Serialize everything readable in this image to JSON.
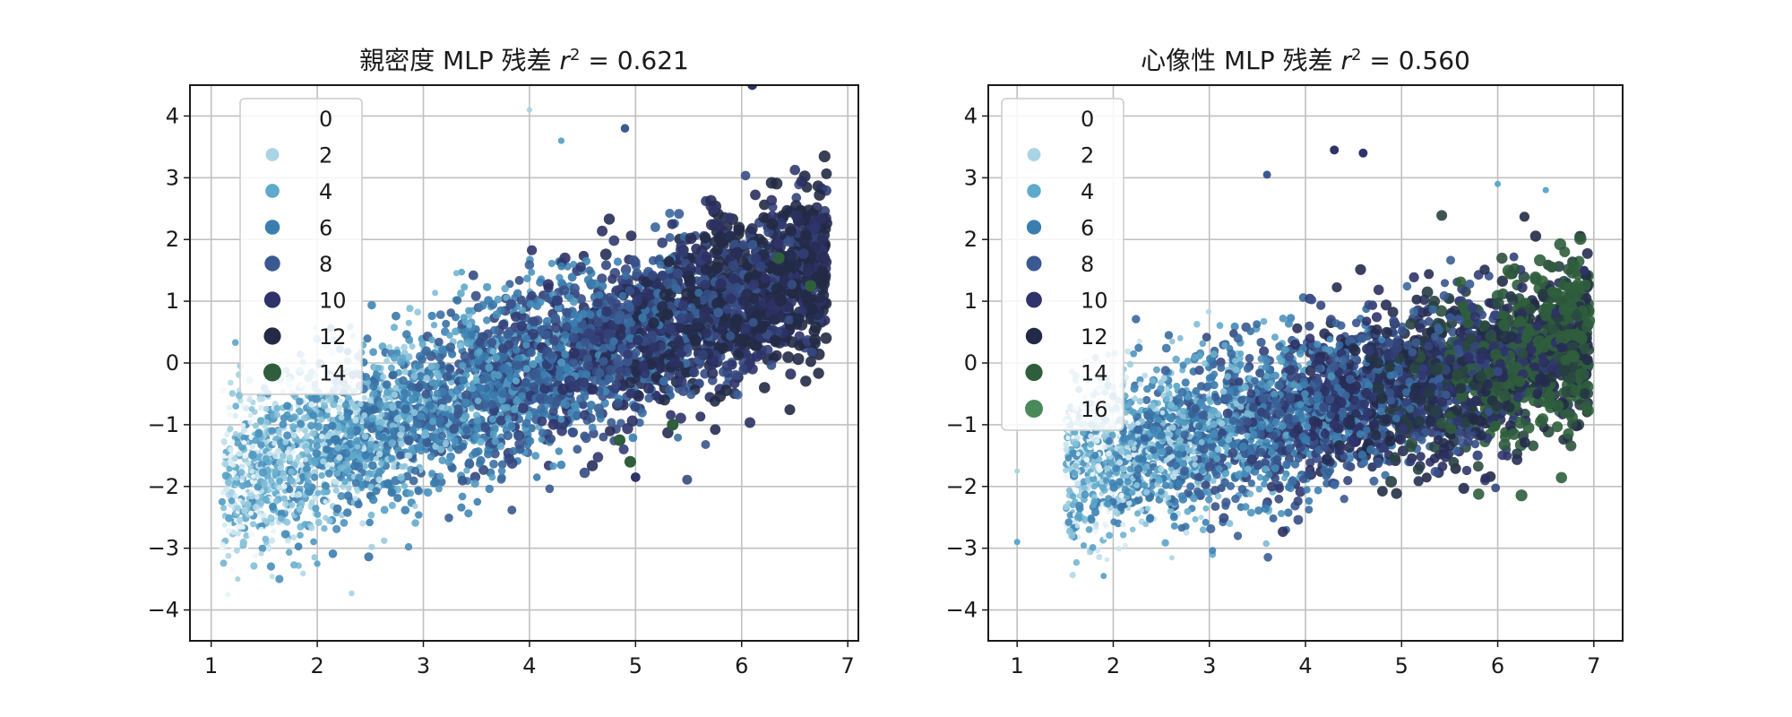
{
  "chart_data": [
    {
      "type": "scatter",
      "title": "親密度 MLP 残差 r² = 0.621",
      "title_main": "親密度 MLP 残差 ",
      "title_r": "r",
      "title_sup": "2",
      "title_value": " = 0.621",
      "xlim": [
        0.8,
        7.1
      ],
      "ylim": [
        -4.5,
        4.5
      ],
      "xticks": [
        1,
        2,
        3,
        4,
        5,
        6,
        7
      ],
      "yticks": [
        -4,
        -3,
        -2,
        -1,
        0,
        1,
        2,
        3,
        4
      ],
      "ytick_labels": [
        "−4",
        "−3",
        "−2",
        "−1",
        "0",
        "1",
        "2",
        "3",
        "4"
      ],
      "grid": true,
      "legend_placement": "upper-left",
      "legend": [
        {
          "label": "0",
          "color": "#f2f8fb"
        },
        {
          "label": "2",
          "color": "#a9d4e4"
        },
        {
          "label": "4",
          "color": "#5fa9cb"
        },
        {
          "label": "6",
          "color": "#3a7eb0"
        },
        {
          "label": "8",
          "color": "#3a5990"
        },
        {
          "label": "10",
          "color": "#2f336a"
        },
        {
          "label": "12",
          "color": "#222a45"
        },
        {
          "label": "14",
          "color": "#2f5e3c"
        }
      ],
      "point_cloud": {
        "count": 4200,
        "x_range": [
          1.1,
          6.8
        ],
        "trend": {
          "slope": 0.62,
          "y_at_x1": -2.0
        },
        "spread": 1.25,
        "hue_range": [
          0,
          14
        ]
      },
      "outliers": [
        {
          "x": 4.0,
          "y": 4.1,
          "hue": 2
        },
        {
          "x": 4.3,
          "y": 3.6,
          "hue": 4
        },
        {
          "x": 4.9,
          "y": 3.8,
          "hue": 8
        },
        {
          "x": 5.0,
          "y": -1.85,
          "hue": 10
        },
        {
          "x": 4.95,
          "y": -1.6,
          "hue": 14
        },
        {
          "x": 4.85,
          "y": -1.25,
          "hue": 14
        },
        {
          "x": 5.35,
          "y": -1.0,
          "hue": 14
        },
        {
          "x": 6.35,
          "y": 1.7,
          "hue": 14
        },
        {
          "x": 6.65,
          "y": 1.25,
          "hue": 14
        },
        {
          "x": 6.1,
          "y": 4.5,
          "hue": 10
        },
        {
          "x": 1.25,
          "y": -3.5,
          "hue": 2
        },
        {
          "x": 2.0,
          "y": -3.25,
          "hue": 4
        }
      ]
    },
    {
      "type": "scatter",
      "title": "心像性 MLP 残差 r² = 0.560",
      "title_main": "心像性 MLP 残差 ",
      "title_r": "r",
      "title_sup": "2",
      "title_value": " = 0.560",
      "xlim": [
        0.7,
        7.3
      ],
      "ylim": [
        -4.5,
        4.5
      ],
      "xticks": [
        1,
        2,
        3,
        4,
        5,
        6,
        7
      ],
      "yticks": [
        -4,
        -3,
        -2,
        -1,
        0,
        1,
        2,
        3,
        4
      ],
      "ytick_labels": [
        "−4",
        "−3",
        "−2",
        "−1",
        "0",
        "1",
        "2",
        "3",
        "4"
      ],
      "grid": true,
      "legend_placement": "upper-left",
      "legend": [
        {
          "label": "0",
          "color": "#f2f8fb"
        },
        {
          "label": "2",
          "color": "#a9d4e4"
        },
        {
          "label": "4",
          "color": "#5fa9cb"
        },
        {
          "label": "6",
          "color": "#3a7eb0"
        },
        {
          "label": "8",
          "color": "#3a5990"
        },
        {
          "label": "10",
          "color": "#2f336a"
        },
        {
          "label": "12",
          "color": "#222a45"
        },
        {
          "label": "14",
          "color": "#2f5e3c"
        },
        {
          "label": "16",
          "color": "#4a8a5a"
        }
      ],
      "point_cloud": {
        "count": 4000,
        "x_range": [
          1.5,
          6.95
        ],
        "trend": {
          "slope": 0.38,
          "y_at_x1": -1.9
        },
        "spread": 1.2,
        "hue_range": [
          0,
          16
        ]
      },
      "outliers": [
        {
          "x": 1.0,
          "y": -2.9,
          "hue": 4
        },
        {
          "x": 1.0,
          "y": -1.75,
          "hue": 2
        },
        {
          "x": 1.9,
          "y": -3.45,
          "hue": 4
        },
        {
          "x": 4.3,
          "y": 3.45,
          "hue": 10
        },
        {
          "x": 4.6,
          "y": 3.4,
          "hue": 10
        },
        {
          "x": 3.6,
          "y": 3.05,
          "hue": 8
        },
        {
          "x": 6.0,
          "y": 2.9,
          "hue": 4
        },
        {
          "x": 6.5,
          "y": 2.8,
          "hue": 4
        },
        {
          "x": 2.2,
          "y": -2.1,
          "hue": 4
        },
        {
          "x": 6.9,
          "y": 1.5,
          "hue": 10
        }
      ]
    }
  ]
}
